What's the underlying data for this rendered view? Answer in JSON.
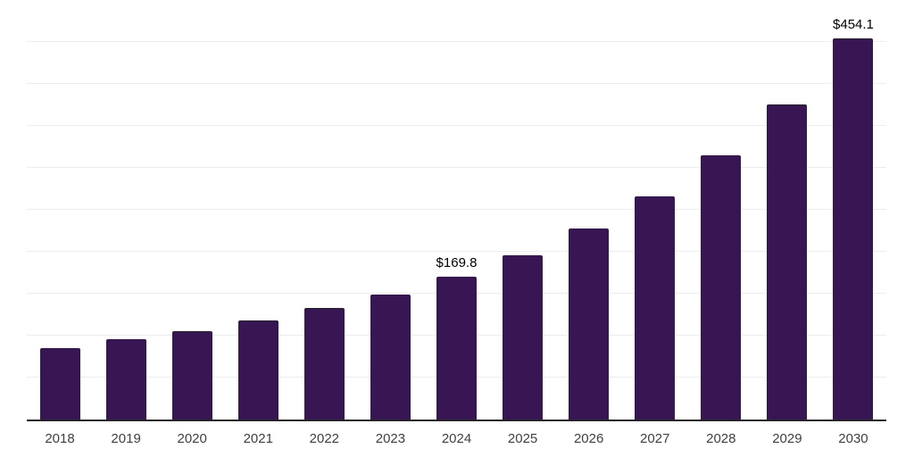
{
  "chart_data": {
    "type": "bar",
    "title": "",
    "xlabel": "",
    "ylabel": "",
    "categories": [
      "2018",
      "2019",
      "2020",
      "2021",
      "2022",
      "2023",
      "2024",
      "2025",
      "2026",
      "2027",
      "2028",
      "2029",
      "2030"
    ],
    "values": [
      85.4,
      95.8,
      105.1,
      118.0,
      132.6,
      149.4,
      169.8,
      195.8,
      228.0,
      266.5,
      314.8,
      375.9,
      454.1
    ],
    "data_labels": [
      null,
      null,
      null,
      null,
      null,
      null,
      "$169.8",
      null,
      null,
      null,
      null,
      null,
      "$454.1"
    ],
    "ylim": [
      0,
      500
    ],
    "gridline_step": 50,
    "grid": true,
    "legend": false,
    "colors": {
      "bar": "#371653",
      "axis": "#262626",
      "gridline": "#ededed",
      "tick_label": "#404040",
      "data_label": "#000000",
      "background": "#ffffff"
    }
  }
}
